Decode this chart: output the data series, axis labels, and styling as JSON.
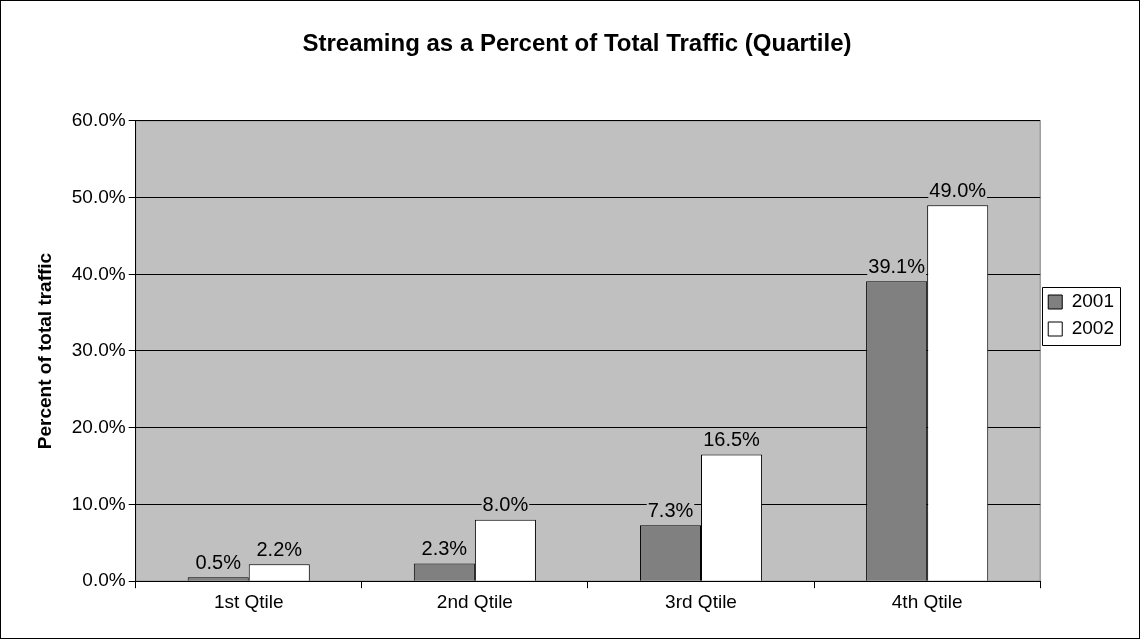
{
  "chart_data": {
    "type": "bar",
    "title": "Streaming as a Percent of Total Traffic (Quartile)",
    "ylabel": "Percent of total traffic",
    "categories": [
      "1st Qtile",
      "2nd Qtile",
      "3rd Qtile",
      "4th Qtile"
    ],
    "series": [
      {
        "name": "2001",
        "color": "#808080",
        "values": [
          0.5,
          2.3,
          7.3,
          39.1
        ],
        "value_labels": [
          "0.5%",
          "2.3%",
          "7.3%",
          "39.1%"
        ]
      },
      {
        "name": "2002",
        "color": "#ffffff",
        "values": [
          2.2,
          8.0,
          16.5,
          49.0
        ],
        "value_labels": [
          "2.2%",
          "8.0%",
          "16.5%",
          "49.0%"
        ]
      }
    ],
    "ylim": [
      0,
      60
    ],
    "yticks": [
      {
        "value": 0,
        "label": "0.0%"
      },
      {
        "value": 10,
        "label": "10.0%"
      },
      {
        "value": 20,
        "label": "20.0%"
      },
      {
        "value": 30,
        "label": "30.0%"
      },
      {
        "value": 40,
        "label": "40.0%"
      },
      {
        "value": 50,
        "label": "50.0%"
      },
      {
        "value": 60,
        "label": "60.0%"
      }
    ],
    "grid": "y",
    "legend": "right"
  }
}
